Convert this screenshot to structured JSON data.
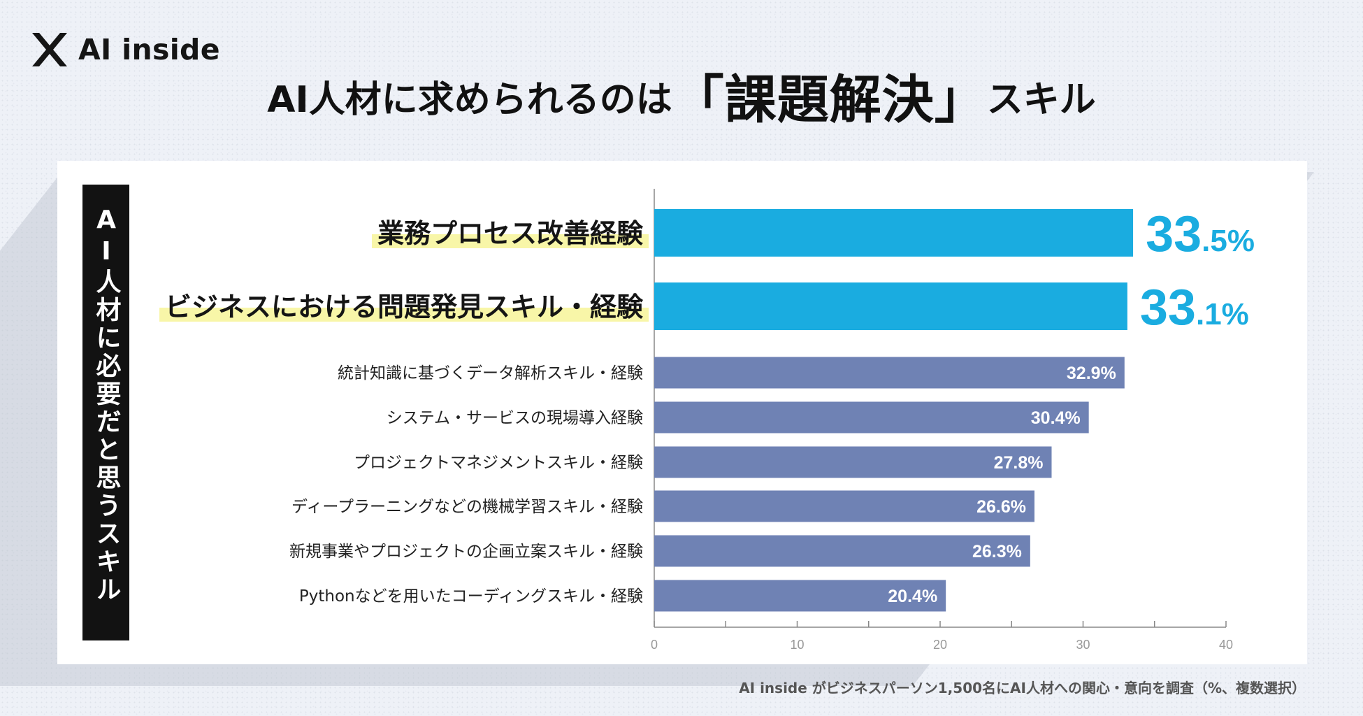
{
  "logo": {
    "text": "AI inside",
    "icon": "ai-inside-x-mark"
  },
  "headline": {
    "pre": "AI人材に求められるのは",
    "emphasis": "「課題解決」",
    "post": "スキル"
  },
  "side_label": "AI人材に必要だと思うスキル",
  "footer_note": "AI inside がビジネスパーソン1,500名にAI人材への関心・意向を調査（%、複数選択）",
  "colors": {
    "highlight_bar": "#1aace0",
    "regular_bar": "#6f82b4",
    "highlight_marker": "#f8f6a8",
    "highlight_value_text": "#1aace0",
    "regular_value_text": "#ffffff",
    "axis": "#888888"
  },
  "chart_data": {
    "type": "bar",
    "orientation": "horizontal",
    "categories": [
      "業務プロセス改善経験",
      "ビジネスにおける問題発見スキル・経験",
      "統計知識に基づくデータ解析スキル・経験",
      "システム・サービスの現場導入経験",
      "プロジェクトマネジメントスキル・経験",
      "ディープラーニングなどの機械学習スキル・経験",
      "新規事業やプロジェクトの企画立案スキル・経験",
      "Pythonなどを用いたコーディングスキル・経験"
    ],
    "values": [
      33.5,
      33.1,
      32.9,
      30.4,
      27.8,
      26.6,
      26.3,
      20.4
    ],
    "value_labels_int": [
      "33",
      "33",
      "32.9%",
      "30.4%",
      "27.8%",
      "26.6%",
      "26.3%",
      "20.4%"
    ],
    "value_labels_dec": [
      ".5%",
      ".1%",
      "",
      "",
      "",
      "",
      "",
      ""
    ],
    "highlighted": [
      true,
      true,
      false,
      false,
      false,
      false,
      false,
      false
    ],
    "xlim": [
      0,
      40
    ],
    "xticks": [
      "0",
      "10",
      "20",
      "30",
      "40"
    ],
    "grid": false,
    "xlabel": "",
    "ylabel": ""
  }
}
